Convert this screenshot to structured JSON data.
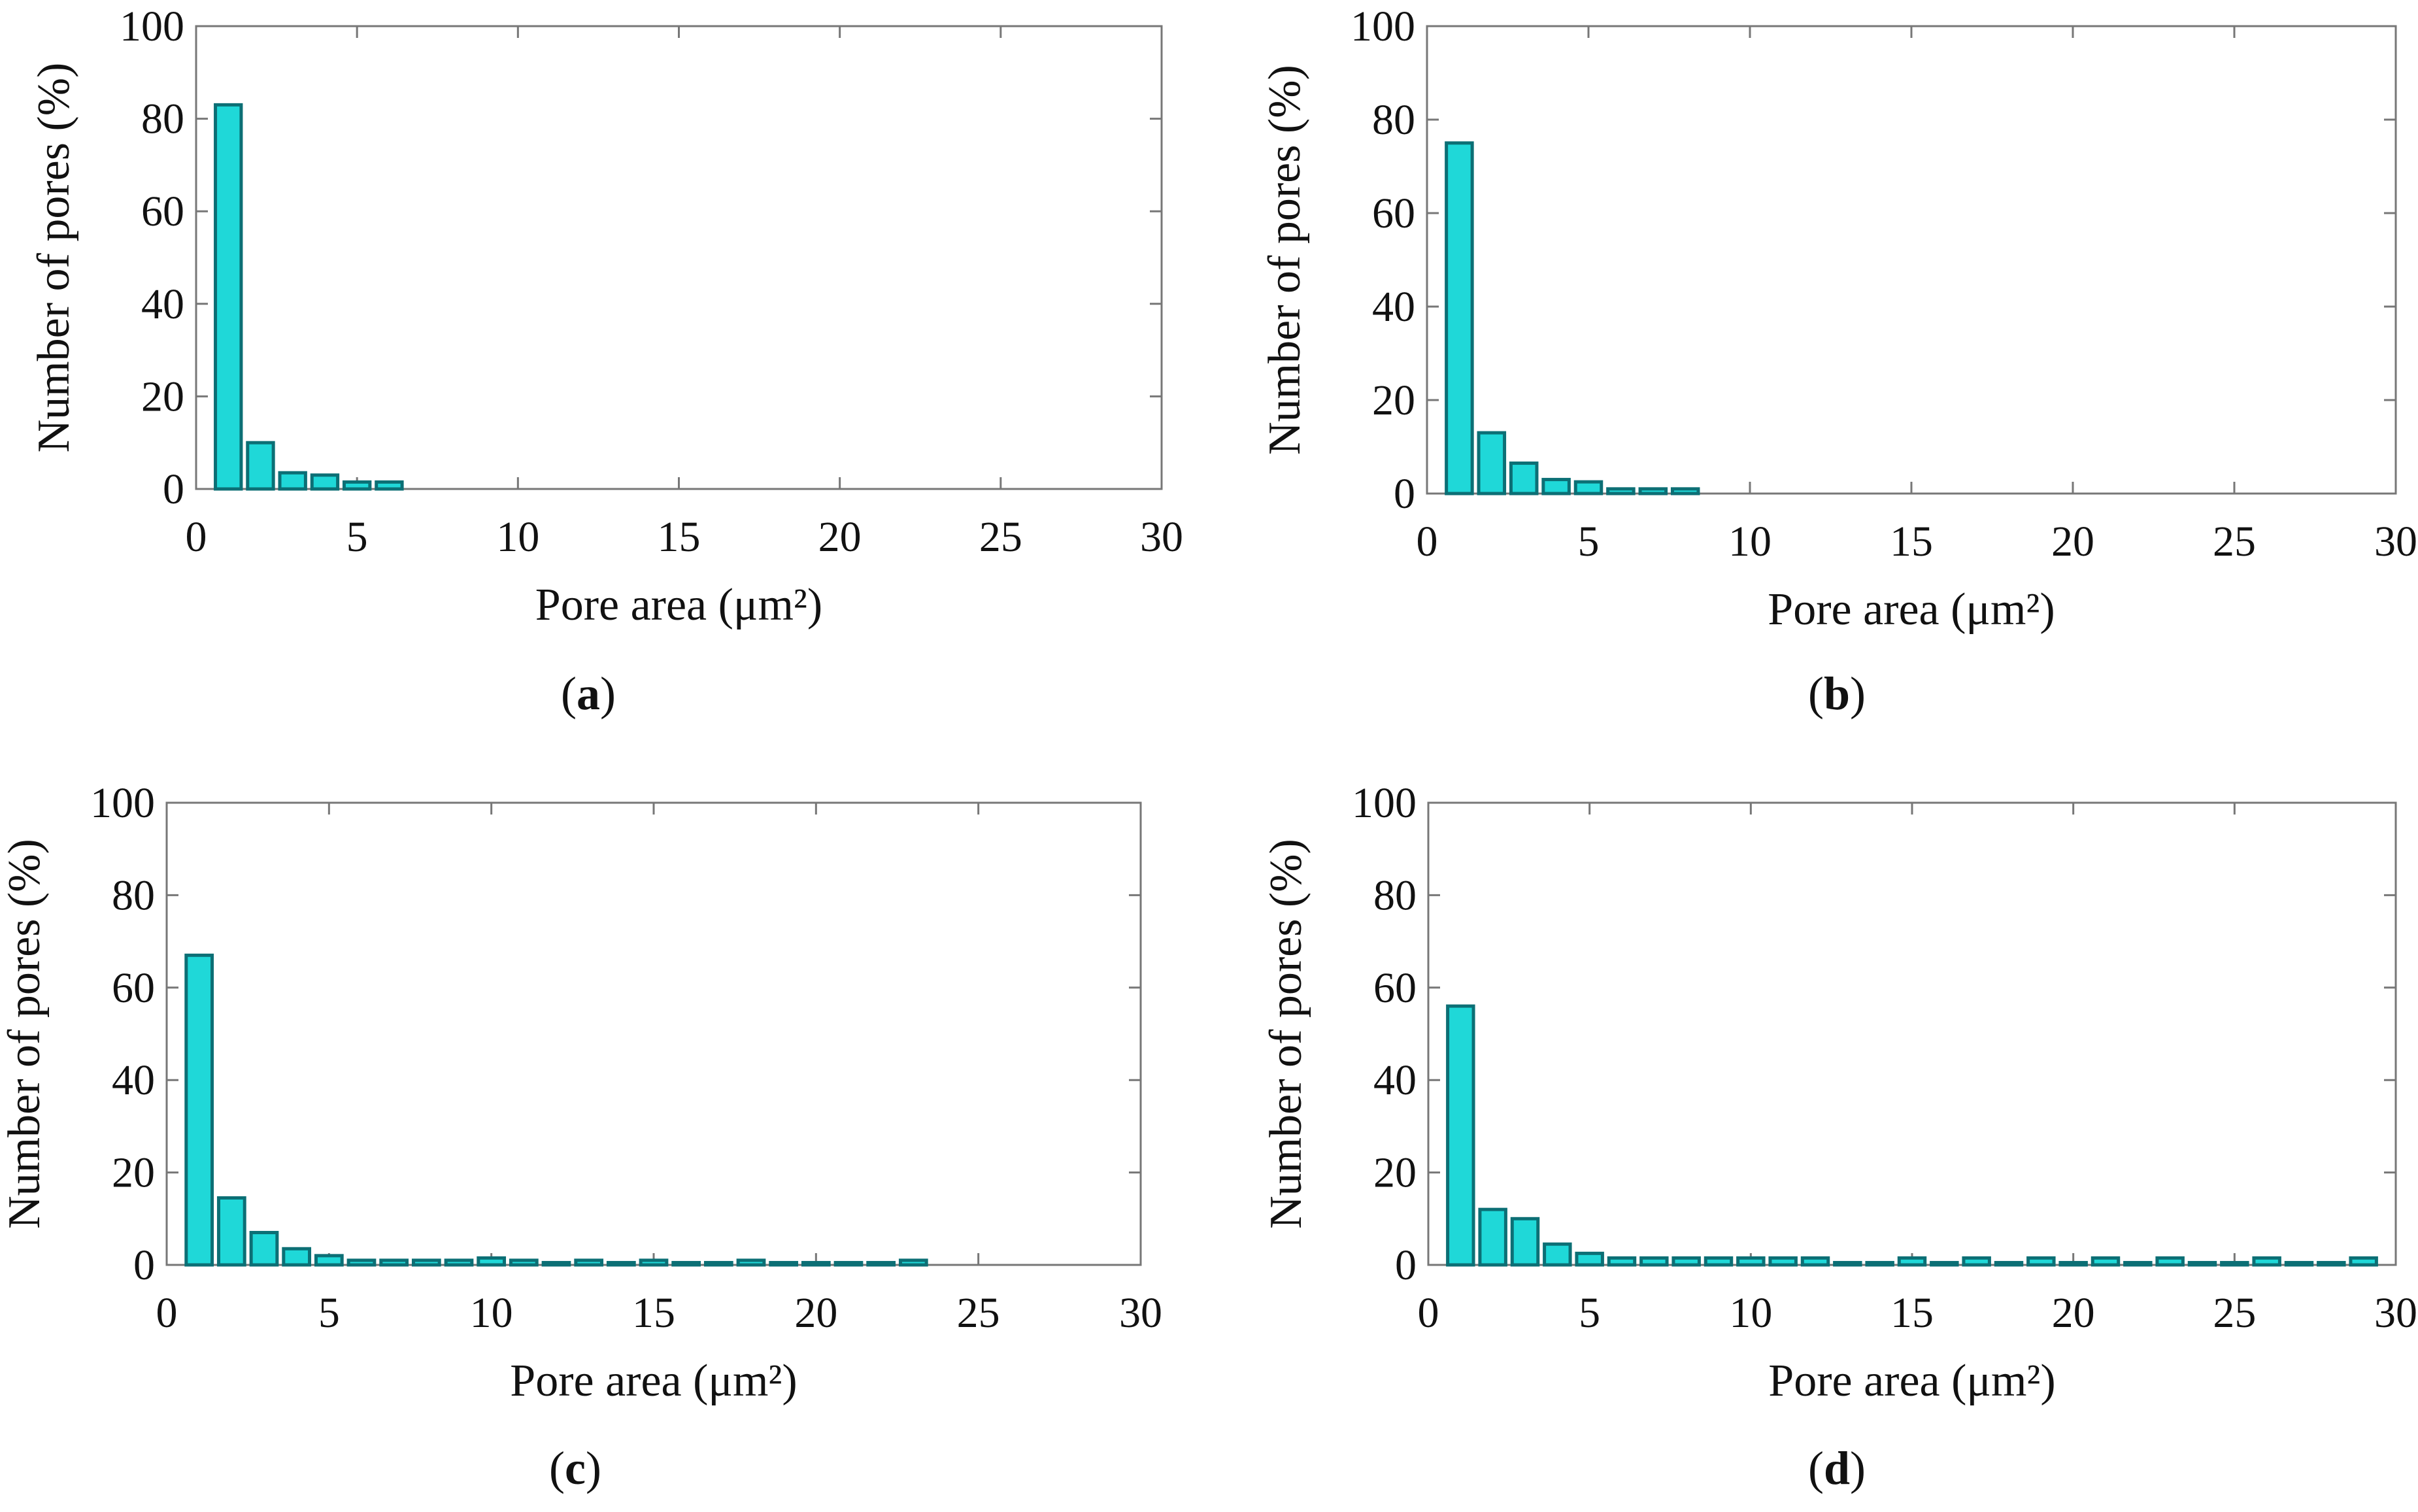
{
  "chart_data": [
    {
      "type": "bar",
      "panel": "a",
      "xlabel": "Pore area (μm²)",
      "ylabel": "Number of pores (%)",
      "xlim": [
        0,
        30
      ],
      "ylim": [
        0,
        100
      ],
      "xticks": [
        "0",
        "5",
        "10",
        "15",
        "20",
        "25",
        "30"
      ],
      "yticks": [
        "0",
        "20",
        "40",
        "60",
        "80",
        "100"
      ],
      "x": [
        1,
        2,
        3,
        4,
        5,
        6
      ],
      "values": [
        83,
        10,
        3.5,
        3,
        1.5,
        1.5
      ],
      "bar_color": "#1fd8d8",
      "caption": "a"
    },
    {
      "type": "bar",
      "panel": "b",
      "xlabel": "Pore area (μm²)",
      "ylabel": "Number of pores (%)",
      "xlim": [
        0,
        30
      ],
      "ylim": [
        0,
        100
      ],
      "xticks": [
        "0",
        "5",
        "10",
        "15",
        "20",
        "25",
        "30"
      ],
      "yticks": [
        "0",
        "20",
        "40",
        "60",
        "80",
        "100"
      ],
      "x": [
        1,
        2,
        3,
        4,
        5,
        6,
        7,
        8
      ],
      "values": [
        75,
        13,
        6.5,
        3,
        2.5,
        1,
        1,
        1
      ],
      "bar_color": "#1fd8d8",
      "caption": "b"
    },
    {
      "type": "bar",
      "panel": "c",
      "xlabel": "Pore area (μm²)",
      "ylabel": "Number of pores (%)",
      "xlim": [
        0,
        30
      ],
      "ylim": [
        0,
        100
      ],
      "xticks": [
        "0",
        "5",
        "10",
        "15",
        "20",
        "25",
        "30"
      ],
      "yticks": [
        "0",
        "20",
        "40",
        "60",
        "80",
        "100"
      ],
      "x": [
        1,
        2,
        3,
        4,
        5,
        6,
        7,
        8,
        9,
        10,
        11,
        12,
        13,
        14,
        15,
        16,
        17,
        18,
        19,
        20,
        21,
        22,
        23
      ],
      "values": [
        67,
        14.5,
        7,
        3.5,
        2,
        1,
        1,
        1,
        1,
        1.5,
        1,
        0.5,
        1,
        0.5,
        1,
        0.5,
        0.5,
        1,
        0.5,
        0.5,
        0.5,
        0.5,
        1
      ],
      "bar_color": "#1fd8d8",
      "caption": "c"
    },
    {
      "type": "bar",
      "panel": "d",
      "xlabel": "Pore area (μm²)",
      "ylabel": "Number of pores (%)",
      "xlim": [
        0,
        30
      ],
      "ylim": [
        0,
        100
      ],
      "xticks": [
        "0",
        "5",
        "10",
        "15",
        "20",
        "25",
        "30"
      ],
      "yticks": [
        "0",
        "20",
        "40",
        "60",
        "80",
        "100"
      ],
      "x": [
        1,
        2,
        3,
        4,
        5,
        6,
        7,
        8,
        9,
        10,
        11,
        12,
        13,
        14,
        15,
        16,
        17,
        18,
        19,
        20,
        21,
        22,
        23,
        24,
        25,
        26,
        27,
        28,
        29
      ],
      "values": [
        56,
        12,
        10,
        4.5,
        2.5,
        1.5,
        1.5,
        1.5,
        1.5,
        1.5,
        1.5,
        1.5,
        0.5,
        0.5,
        1.5,
        0.5,
        1.5,
        0.5,
        1.5,
        0.5,
        1.5,
        0.5,
        1.5,
        0.5,
        0.5,
        1.5,
        0.5,
        0.5,
        1.5
      ],
      "bar_color": "#1fd8d8",
      "caption": "d"
    }
  ]
}
